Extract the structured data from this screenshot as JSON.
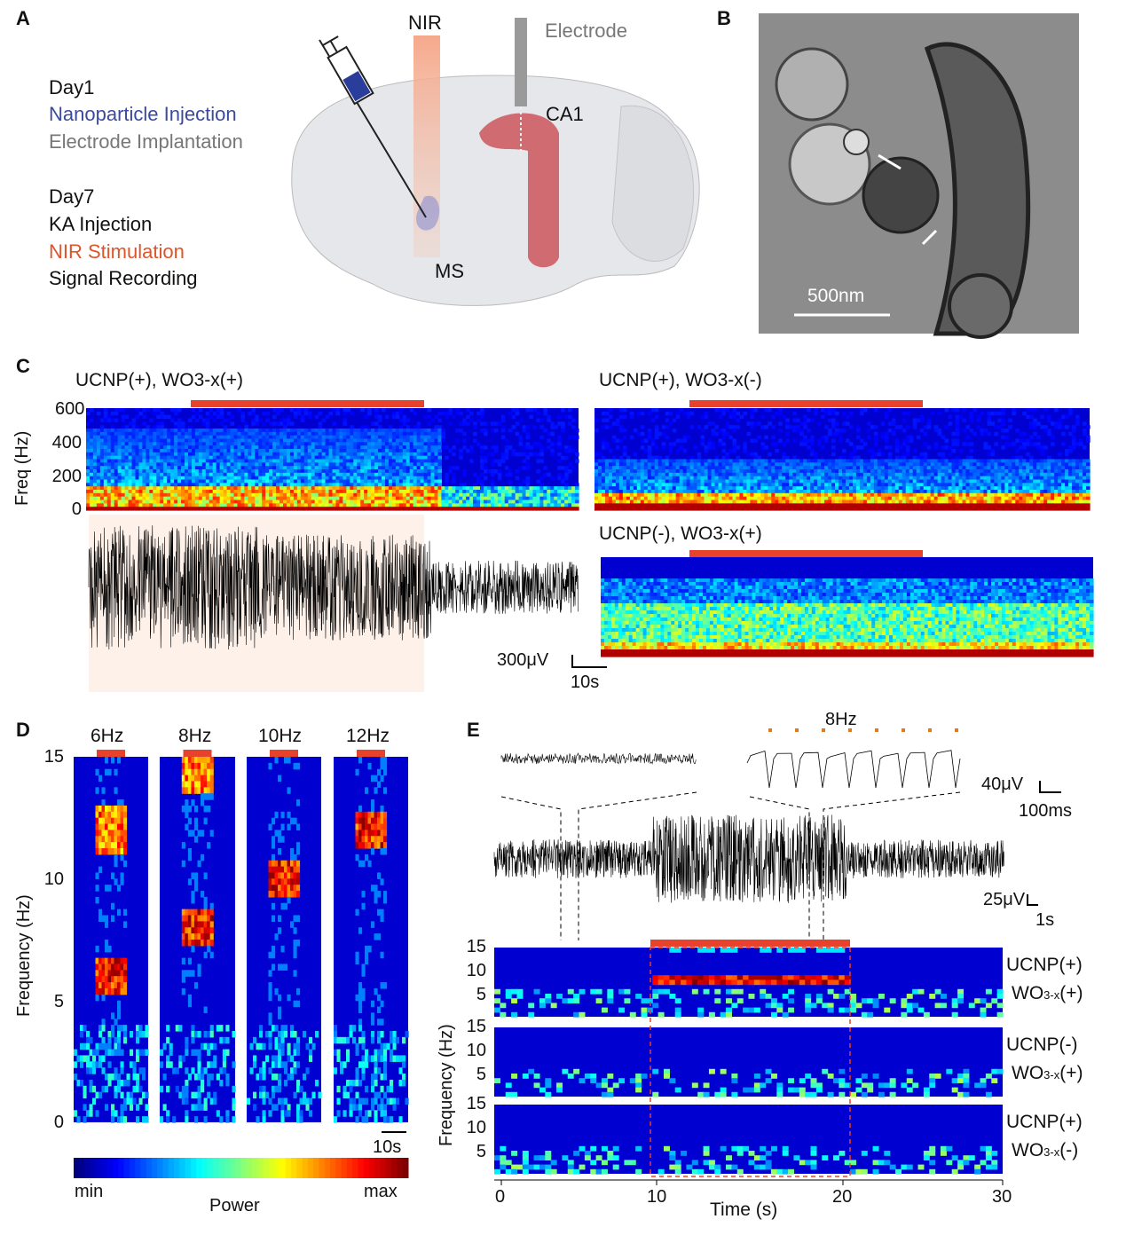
{
  "panels": {
    "A": "A",
    "B": "B",
    "C": "C",
    "D": "D",
    "E": "E"
  },
  "protocol": {
    "day1": "Day1",
    "nano": "Nanoparticle Injection",
    "electrode": "Electrode Implantation",
    "day7": "Day7",
    "ka": "KA Injection",
    "nir": "NIR Stimulation",
    "record": "Signal Recording"
  },
  "brain_labels": {
    "nir": "NIR",
    "electrode": "Electrode",
    "ca1": "CA1",
    "ms": "MS"
  },
  "em": {
    "scale": "500nm"
  },
  "colors": {
    "stim": "#e8412c",
    "nano": "#3b4aa0",
    "nir": "#e0542a",
    "gray": "#777777"
  },
  "chart_data": [
    {
      "type": "heatmap",
      "panel": "C",
      "title": "UCNP(+), WO3-x(+)",
      "ylabel": "Freq (Hz)",
      "yticks": [
        "600",
        "400",
        "200",
        "0"
      ],
      "ylim": [
        0,
        600
      ],
      "stim_fraction": [
        0.21,
        0.69
      ],
      "trace": {
        "scale_v": "300μV",
        "scale_t": "10s"
      }
    },
    {
      "type": "heatmap",
      "panel": "C",
      "title": "UCNP(+), WO3-x(-)",
      "ylim": [
        0,
        600
      ],
      "stim_fraction": [
        0.19,
        0.67
      ]
    },
    {
      "type": "heatmap",
      "panel": "C",
      "title": "UCNP(-), WO3-x(+)",
      "ylim": [
        0,
        600
      ],
      "stim_fraction": [
        0.18,
        0.65
      ]
    },
    {
      "type": "heatmap",
      "panel": "D",
      "ylabel": "Frequency (Hz)",
      "yticks": [
        "15",
        "10",
        "5",
        "0"
      ],
      "ylim": [
        0,
        15
      ],
      "columns": [
        {
          "label": "6Hz",
          "peaks": [
            6,
            12
          ]
        },
        {
          "label": "8Hz",
          "peaks": [
            8,
            14.5
          ]
        },
        {
          "label": "10Hz",
          "peaks": [
            10
          ]
        },
        {
          "label": "12Hz",
          "peaks": [
            12
          ]
        }
      ],
      "scale_t": "10s",
      "colorbar": {
        "min": "min",
        "max": "max",
        "label": "Power"
      }
    },
    {
      "type": "heatmap",
      "panel": "E",
      "xlabel": "Time (s)",
      "ylabel": "Frequency (Hz)",
      "xticks": [
        "0",
        "10",
        "20",
        "30"
      ],
      "xlim": [
        0,
        30
      ],
      "yticks": [
        "15",
        "10",
        "5"
      ],
      "stim": [
        10,
        20
      ],
      "inset": {
        "label": "8Hz",
        "scale_v": "40μV",
        "scale_t": "100ms"
      },
      "trace": {
        "scale_v": "25μV",
        "scale_t": "1s"
      },
      "rows": [
        {
          "l1": "UCNP(+)",
          "l2a": "WO",
          "l2b": "3-x",
          "l2c": "(+)",
          "peak": 8
        },
        {
          "l1": "UCNP(-)",
          "l2a": "WO",
          "l2b": "3-x",
          "l2c": "(+)"
        },
        {
          "l1": "UCNP(+)",
          "l2a": "WO",
          "l2b": "3-x",
          "l2c": "(-)"
        }
      ]
    }
  ]
}
